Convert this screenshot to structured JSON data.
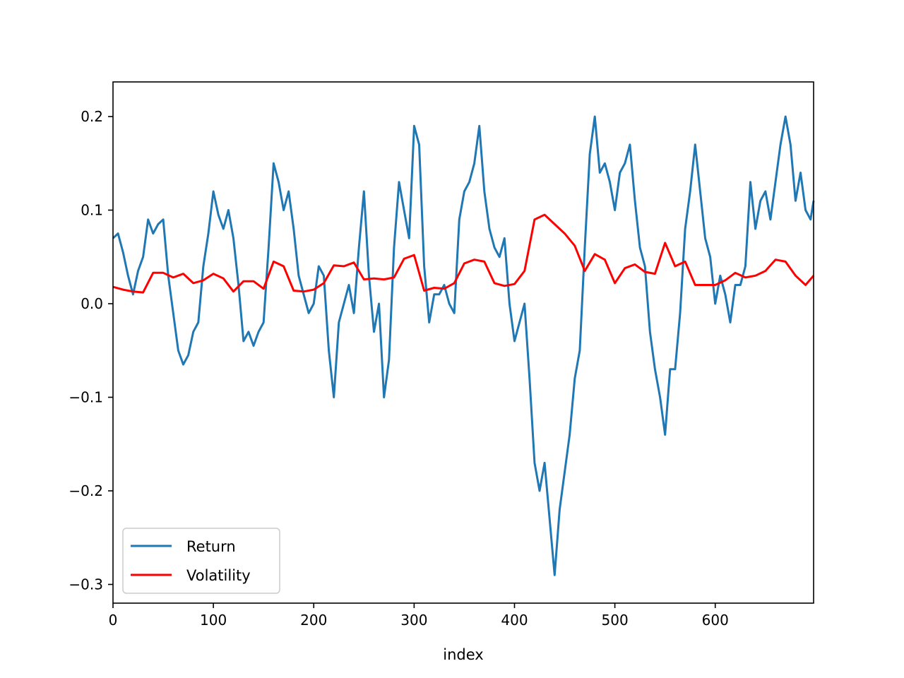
{
  "chart_data": {
    "type": "line",
    "title": "",
    "xlabel": "index",
    "ylabel": "",
    "xlim": [
      0,
      698
    ],
    "ylim": [
      -0.32,
      0.237
    ],
    "xticks": [
      0,
      100,
      200,
      300,
      400,
      500,
      600
    ],
    "yticks": [
      -0.3,
      -0.2,
      -0.1,
      0.0,
      0.1,
      0.2
    ],
    "ytick_labels": [
      "−0.3",
      "−0.2",
      "−0.1",
      "0.0",
      "0.1",
      "0.2"
    ],
    "grid": false,
    "legend": "lower-left",
    "series": [
      {
        "name": "Return",
        "color": "#1f77b4",
        "x": [
          0,
          5,
          10,
          15,
          20,
          25,
          30,
          35,
          40,
          45,
          50,
          55,
          60,
          65,
          70,
          75,
          80,
          85,
          90,
          95,
          100,
          105,
          110,
          115,
          120,
          125,
          130,
          135,
          140,
          145,
          150,
          155,
          160,
          165,
          170,
          175,
          180,
          185,
          190,
          195,
          200,
          205,
          210,
          215,
          220,
          225,
          230,
          235,
          240,
          245,
          250,
          255,
          260,
          265,
          270,
          275,
          280,
          285,
          290,
          295,
          300,
          305,
          310,
          315,
          320,
          325,
          330,
          335,
          340,
          345,
          350,
          355,
          360,
          365,
          370,
          375,
          380,
          385,
          390,
          395,
          400,
          405,
          410,
          415,
          420,
          425,
          430,
          435,
          440,
          445,
          450,
          455,
          460,
          465,
          470,
          475,
          480,
          485,
          490,
          495,
          500,
          505,
          510,
          515,
          520,
          525,
          530,
          535,
          540,
          545,
          550,
          555,
          560,
          565,
          570,
          575,
          580,
          585,
          590,
          595,
          600,
          605,
          610,
          615,
          620,
          625,
          630,
          635,
          640,
          645,
          650,
          655,
          660,
          665,
          670,
          675,
          680,
          685,
          690,
          695,
          698
        ],
        "values": [
          0.07,
          0.075,
          0.055,
          0.03,
          0.01,
          0.035,
          0.05,
          0.09,
          0.075,
          0.085,
          0.09,
          0.03,
          -0.01,
          -0.05,
          -0.065,
          -0.055,
          -0.03,
          -0.02,
          0.04,
          0.075,
          0.12,
          0.095,
          0.08,
          0.1,
          0.07,
          0.02,
          -0.04,
          -0.03,
          -0.045,
          -0.03,
          -0.02,
          0.06,
          0.15,
          0.13,
          0.1,
          0.12,
          0.08,
          0.03,
          0.01,
          -0.01,
          0.0,
          0.04,
          0.03,
          -0.05,
          -0.1,
          -0.02,
          0.0,
          0.02,
          -0.01,
          0.06,
          0.12,
          0.03,
          -0.03,
          0.0,
          -0.1,
          -0.06,
          0.06,
          0.13,
          0.1,
          0.07,
          0.19,
          0.17,
          0.04,
          -0.02,
          0.01,
          0.01,
          0.02,
          0.0,
          -0.01,
          0.09,
          0.12,
          0.13,
          0.15,
          0.19,
          0.12,
          0.08,
          0.06,
          0.05,
          0.07,
          0.0,
          -0.04,
          -0.02,
          0.0,
          -0.08,
          -0.17,
          -0.2,
          -0.17,
          -0.23,
          -0.29,
          -0.22,
          -0.18,
          -0.14,
          -0.08,
          -0.05,
          0.06,
          0.16,
          0.2,
          0.14,
          0.15,
          0.13,
          0.1,
          0.14,
          0.15,
          0.17,
          0.11,
          0.06,
          0.04,
          -0.03,
          -0.07,
          -0.1,
          -0.14,
          -0.07,
          -0.07,
          -0.01,
          0.08,
          0.12,
          0.17,
          0.12,
          0.07,
          0.05,
          0.0,
          0.03,
          0.01,
          -0.02,
          0.02,
          0.02,
          0.04,
          0.13,
          0.08,
          0.11,
          0.12,
          0.09,
          0.13,
          0.17,
          0.2,
          0.17,
          0.11,
          0.14,
          0.1,
          0.09,
          0.11
        ]
      },
      {
        "name": "Volatility",
        "color": "#ff0000",
        "x": [
          0,
          10,
          20,
          30,
          40,
          50,
          60,
          70,
          80,
          90,
          100,
          110,
          120,
          130,
          140,
          150,
          160,
          170,
          180,
          190,
          200,
          210,
          220,
          230,
          240,
          250,
          260,
          270,
          280,
          290,
          300,
          310,
          320,
          330,
          340,
          350,
          360,
          370,
          380,
          390,
          400,
          410,
          420,
          430,
          440,
          450,
          460,
          470,
          480,
          490,
          500,
          510,
          520,
          530,
          540,
          550,
          560,
          570,
          580,
          590,
          600,
          610,
          620,
          630,
          640,
          650,
          660,
          670,
          680,
          690,
          698
        ],
        "values": [
          0.018,
          0.015,
          0.013,
          0.012,
          0.033,
          0.033,
          0.028,
          0.032,
          0.022,
          0.025,
          0.032,
          0.027,
          0.013,
          0.024,
          0.024,
          0.016,
          0.045,
          0.04,
          0.014,
          0.013,
          0.015,
          0.022,
          0.041,
          0.04,
          0.044,
          0.026,
          0.027,
          0.026,
          0.028,
          0.048,
          0.052,
          0.014,
          0.017,
          0.016,
          0.022,
          0.043,
          0.047,
          0.045,
          0.022,
          0.019,
          0.021,
          0.035,
          0.09,
          0.095,
          0.085,
          0.075,
          0.062,
          0.035,
          0.053,
          0.047,
          0.022,
          0.038,
          0.042,
          0.034,
          0.032,
          0.065,
          0.04,
          0.045,
          0.02,
          0.02,
          0.02,
          0.025,
          0.033,
          0.028,
          0.03,
          0.035,
          0.047,
          0.045,
          0.03,
          0.02,
          0.03
        ]
      }
    ]
  }
}
